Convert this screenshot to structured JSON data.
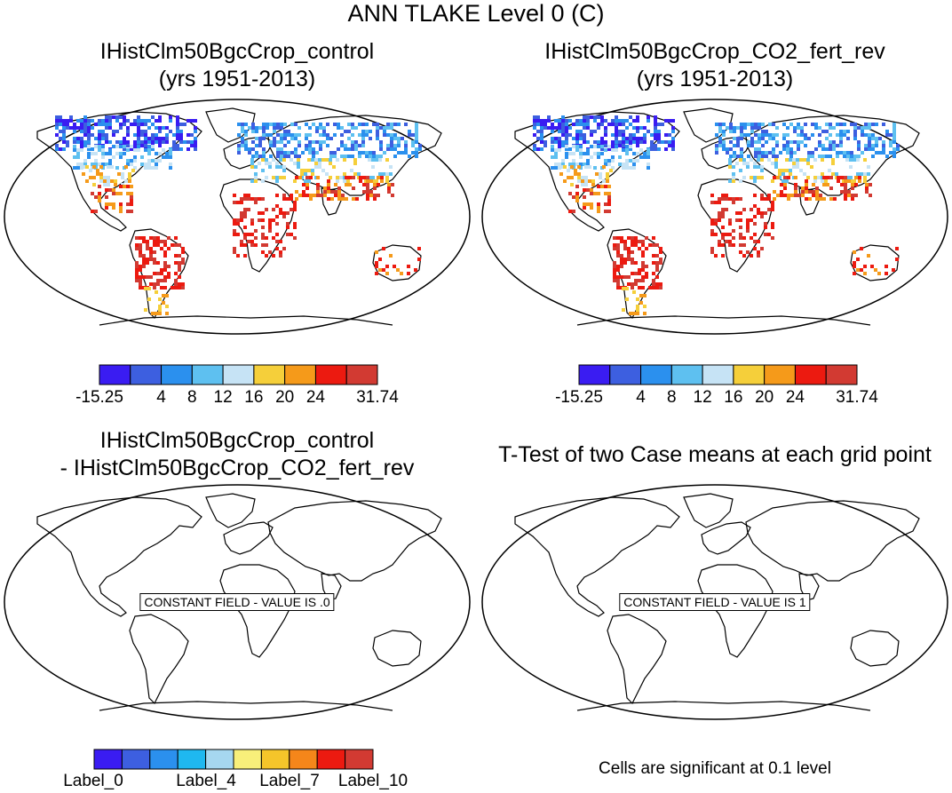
{
  "main_title": "ANN TLAKE Level 0 (C)",
  "panels": [
    {
      "title_line1": "IHistClm50BgcCrop_control",
      "title_line2": "(yrs 1951-2013)"
    },
    {
      "title_line1": "IHistClm50BgcCrop_CO2_fert_rev",
      "title_line2": "(yrs 1951-2013)"
    },
    {
      "title_line1": "IHistClm50BgcCrop_control",
      "title_line2": "- IHistClm50BgcCrop_CO2_fert_rev",
      "annotation": "CONSTANT FIELD - VALUE IS .0"
    },
    {
      "title_line1": "T-Test of two Case means at each grid point",
      "annotation": "CONSTANT FIELD - VALUE IS 1"
    }
  ],
  "colorbar_top": {
    "colors": [
      "#3a1cf2",
      "#3d5fe0",
      "#2b90ee",
      "#5ec0f0",
      "#c6e3f5",
      "#f5cf3a",
      "#f59a1a",
      "#ec1a10",
      "#d23a32"
    ],
    "labels": [
      "-15.25",
      "4",
      "8",
      "12",
      "16",
      "20",
      "24",
      "31.74"
    ]
  },
  "colorbar_bottom": {
    "colors": [
      "#3a1cf2",
      "#3d5fe0",
      "#2b90ee",
      "#1fb8f0",
      "#a6d7f0",
      "#f8ef7a",
      "#f5c52a",
      "#f5861a",
      "#ec1a10",
      "#d23a32"
    ],
    "labels": [
      "Label_0",
      "Label_4",
      "Label_7",
      "Label_10"
    ]
  },
  "significance_note": "Cells are significant at 0.1 level"
}
